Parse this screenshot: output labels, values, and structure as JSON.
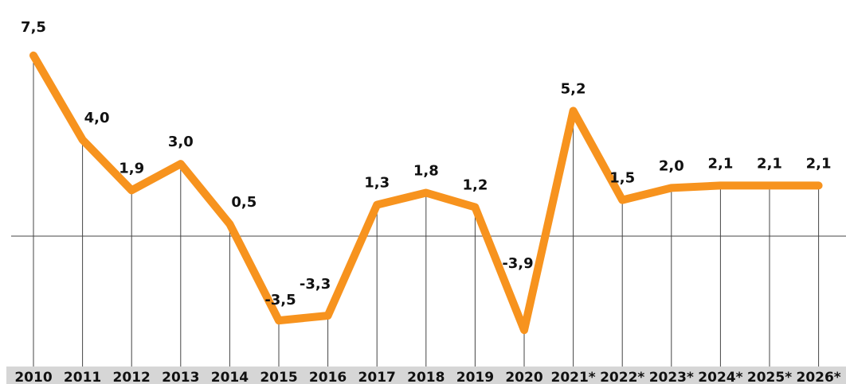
{
  "chart_data": {
    "type": "line",
    "title": "",
    "xlabel": "",
    "ylabel": "",
    "categories": [
      "2010",
      "2011",
      "2012",
      "2013",
      "2014",
      "2015",
      "2016",
      "2017",
      "2018",
      "2019",
      "2020",
      "2021*",
      "2022*",
      "2023*",
      "2024*",
      "2025*",
      "2026*"
    ],
    "series": [
      {
        "values": [
          7.5,
          4.0,
          1.9,
          3.0,
          0.5,
          -3.5,
          -3.3,
          1.3,
          1.8,
          1.2,
          -3.9,
          5.2,
          1.5,
          2.0,
          2.1,
          2.1,
          2.1
        ],
        "labels": [
          "7,5",
          "4,0",
          "1,9",
          "3,0",
          "0,5",
          "-3,5",
          "-3,3",
          "1,3",
          "1,8",
          "1,2",
          "-3,9",
          "5,2",
          "1,5",
          "2,0",
          "2,1",
          "2,1",
          "2,1"
        ]
      }
    ],
    "ylim": [
      -4.5,
      8.0
    ],
    "grid": false,
    "legend": "none",
    "colors": {
      "line": "#F7931E",
      "axis_band": "#D6D6D6",
      "guides": "#444444"
    }
  }
}
